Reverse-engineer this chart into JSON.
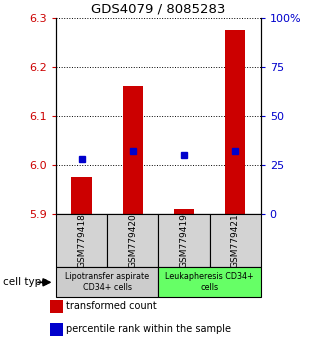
{
  "title": "GDS4079 / 8085283",
  "samples": [
    "GSM779418",
    "GSM779420",
    "GSM779419",
    "GSM779421"
  ],
  "transformed_counts": [
    5.975,
    6.16,
    5.91,
    6.275
  ],
  "percentile_ranks": [
    28,
    32,
    30,
    32
  ],
  "ylim_left": [
    5.9,
    6.3
  ],
  "ylim_right": [
    0,
    100
  ],
  "yticks_left": [
    5.9,
    6.0,
    6.1,
    6.2,
    6.3
  ],
  "yticks_right": [
    0,
    25,
    50,
    75,
    100
  ],
  "ytick_labels_right": [
    "0",
    "25",
    "50",
    "75",
    "100%"
  ],
  "bar_color": "#cc0000",
  "dot_color": "#0000cc",
  "bar_width": 0.4,
  "cell_type_groups": [
    {
      "label": "Lipotransfer aspirate\nCD34+ cells",
      "samples": [
        0,
        1
      ],
      "color": "#cccccc"
    },
    {
      "label": "Leukapheresis CD34+\ncells",
      "samples": [
        2,
        3
      ],
      "color": "#66ff66"
    }
  ],
  "legend_items": [
    {
      "label": "transformed count",
      "color": "#cc0000"
    },
    {
      "label": "percentile rank within the sample",
      "color": "#0000cc"
    }
  ],
  "cell_type_label": "cell type",
  "bar_base": 5.9
}
